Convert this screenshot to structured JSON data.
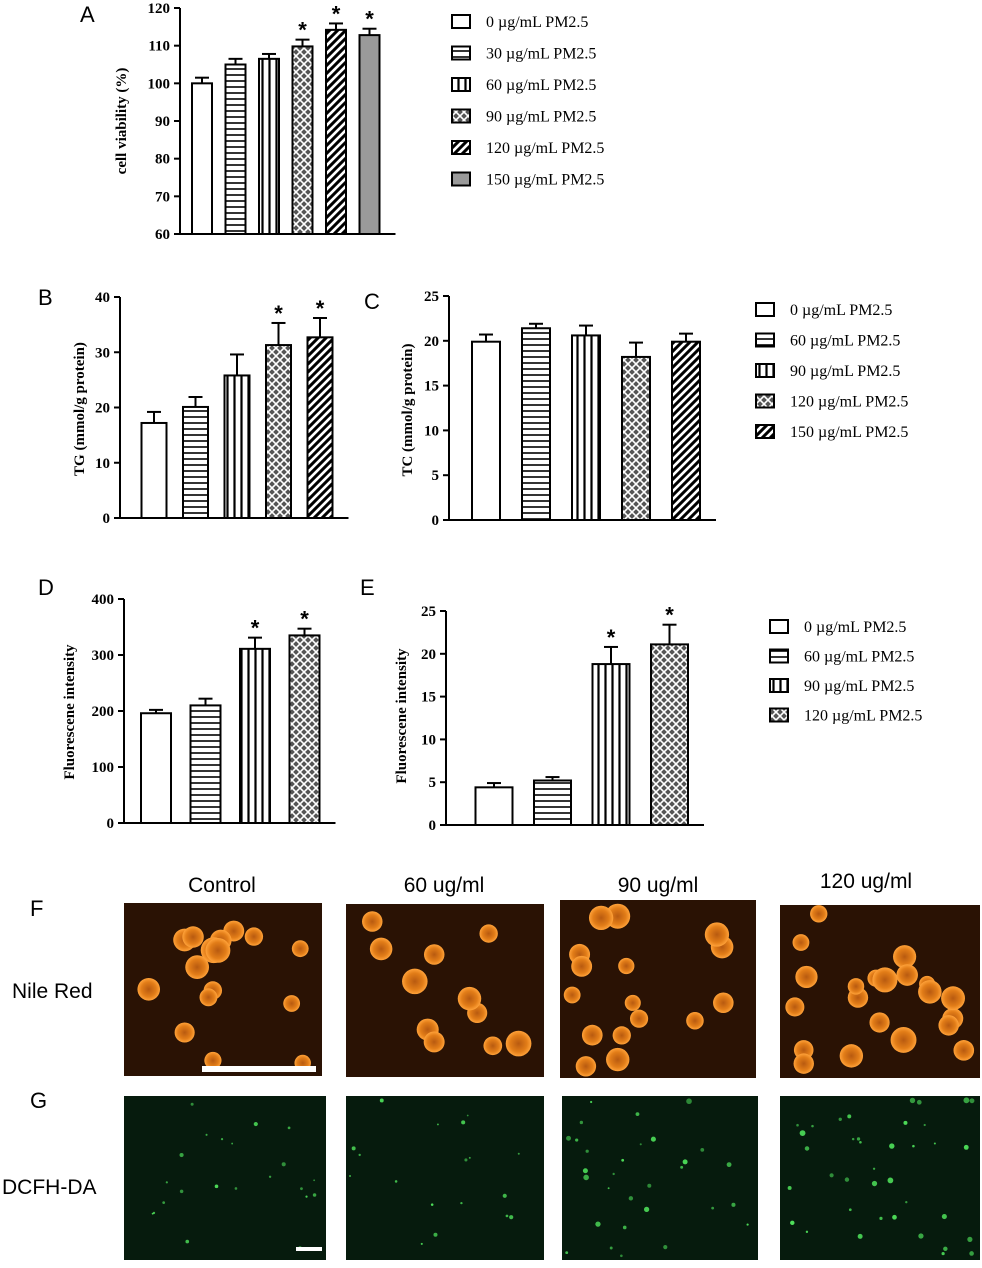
{
  "panels": [
    "A",
    "B",
    "C",
    "D",
    "E",
    "F",
    "G"
  ],
  "chart_data": [
    {
      "panel": "A",
      "type": "bar",
      "ylabel": "cell viability (%)",
      "ylim": [
        60,
        120
      ],
      "yticks": [
        60,
        70,
        80,
        90,
        100,
        110,
        120
      ],
      "categories": [
        "0 µg/mL PM2.5",
        "30 µg/mL PM2.5",
        "60 µg/mL PM2.5",
        "90 µg/mL PM2.5",
        "120 µg/mL PM2.5",
        "150 µg/mL PM2.5"
      ],
      "values": [
        100,
        105,
        106.5,
        109.8,
        114.2,
        112.8
      ],
      "errors": [
        1.5,
        1.5,
        1.3,
        1.8,
        1.7,
        1.7
      ],
      "significant": [
        false,
        false,
        false,
        true,
        true,
        true
      ],
      "patterns": [
        "blank",
        "hlines",
        "vlines",
        "cross",
        "diag",
        "gray"
      ],
      "legend": [
        "0 µg/mL PM2.5",
        "30 µg/mL PM2.5",
        "60 µg/mL PM2.5",
        "90 µg/mL PM2.5",
        "120 µg/mL PM2.5",
        "150 µg/mL PM2.5"
      ]
    },
    {
      "panel": "B",
      "type": "bar",
      "ylabel": "TG (mmol/g protein)",
      "ylim": [
        0,
        40
      ],
      "yticks": [
        0,
        10,
        20,
        30,
        40
      ],
      "categories": [
        "0 µg/mL PM2.5",
        "60 µg/mL PM2.5",
        "90 µg/mL PM2.5",
        "120 µg/mL PM2.5",
        "150 µg/mL PM2.5"
      ],
      "values": [
        17.2,
        20.1,
        25.8,
        31.3,
        32.7
      ],
      "errors": [
        2.0,
        1.8,
        3.8,
        4.0,
        3.5
      ],
      "significant": [
        false,
        false,
        false,
        true,
        true
      ],
      "patterns": [
        "blank",
        "hlines",
        "vlines",
        "cross",
        "diag"
      ]
    },
    {
      "panel": "C",
      "type": "bar",
      "ylabel": "TC (mmol/g protein)",
      "ylim": [
        0,
        25
      ],
      "yticks": [
        0,
        5,
        10,
        15,
        20,
        25
      ],
      "categories": [
        "0 µg/mL PM2.5",
        "60 µg/mL PM2.5",
        "90 µg/mL PM2.5",
        "120 µg/mL PM2.5",
        "150 µg/mL PM2.5"
      ],
      "values": [
        19.9,
        21.4,
        20.6,
        18.2,
        19.9
      ],
      "errors": [
        0.8,
        0.5,
        1.1,
        1.6,
        0.9
      ],
      "significant": [
        false,
        false,
        false,
        false,
        false
      ],
      "patterns": [
        "blank",
        "hlines",
        "vlines",
        "cross",
        "diag"
      ],
      "legend": [
        "0 µg/mL PM2.5",
        "60 µg/mL PM2.5",
        "90 µg/mL PM2.5",
        "120 µg/mL PM2.5",
        "150 µg/mL PM2.5"
      ]
    },
    {
      "panel": "D",
      "type": "bar",
      "ylabel": "Fluorescene intensity",
      "ylim": [
        0,
        400
      ],
      "yticks": [
        0,
        100,
        200,
        300,
        400
      ],
      "categories": [
        "0 µg/mL PM2.5",
        "60 µg/mL PM2.5",
        "90 µg/mL PM2.5",
        "120 µg/mL PM2.5"
      ],
      "values": [
        196,
        210,
        311,
        335
      ],
      "errors": [
        6,
        12,
        20,
        12
      ],
      "significant": [
        false,
        false,
        true,
        true
      ],
      "patterns": [
        "blank",
        "hlines",
        "vlines",
        "cross"
      ]
    },
    {
      "panel": "E",
      "type": "bar",
      "ylabel": "Fluorescene intensity",
      "ylim": [
        0,
        25
      ],
      "yticks": [
        0,
        5,
        10,
        15,
        20,
        25
      ],
      "categories": [
        "0 µg/mL PM2.5",
        "60 µg/mL PM2.5",
        "90 µg/mL PM2.5",
        "120 µg/mL PM2.5"
      ],
      "values": [
        4.4,
        5.2,
        18.8,
        21.1
      ],
      "errors": [
        0.5,
        0.4,
        2.0,
        2.3
      ],
      "significant": [
        false,
        false,
        true,
        true
      ],
      "patterns": [
        "blank",
        "hlines",
        "vlines",
        "cross"
      ],
      "legend": [
        "0 µg/mL PM2.5",
        "60 µg/mL PM2.5",
        "90 µg/mL PM2.5",
        "120 µg/mL PM2.5"
      ]
    }
  ],
  "microscopy": {
    "columns": [
      "Control",
      "60 ug/ml",
      "90 ug/ml",
      "120 ug/ml"
    ],
    "rows": [
      "Nile Red",
      "DCFH-DA"
    ]
  },
  "colors": {
    "bar_stroke": "#000000",
    "gray_fill": "#9a9a9a",
    "cross_fill": "#555555",
    "nile_bg": "#2a1204",
    "nile_cell": "#f08a1c",
    "dcfh_bg": "#061b0d",
    "dcfh_dot": "#4ee05a"
  }
}
